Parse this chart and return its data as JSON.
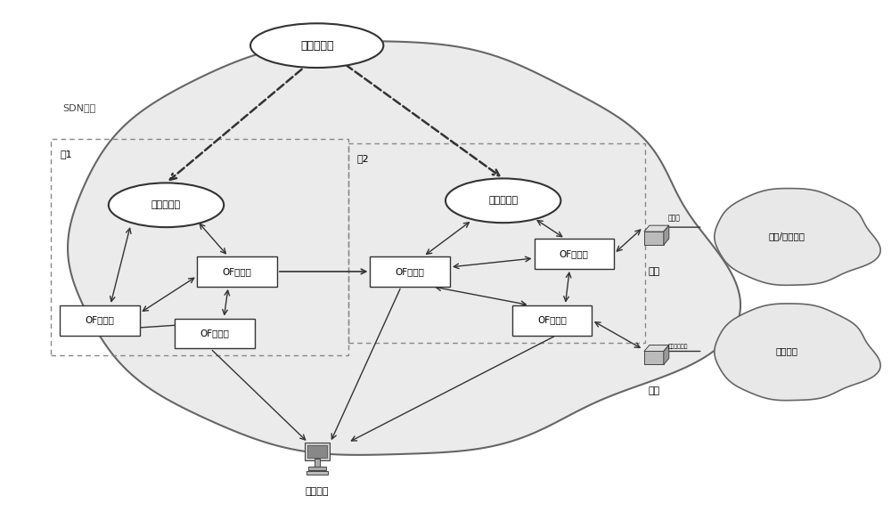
{
  "bg_color": "#f5f5f5",
  "white": "#ffffff",
  "gray_light": "#e8e8e8",
  "gray_mid": "#cccccc",
  "gray_dark": "#888888",
  "black": "#222222",
  "labels": {
    "global_ctrl": "全局控制器",
    "sdn_network": "SDN网络",
    "domain1": "域1",
    "domain2": "域2",
    "local_ctrl1": "局部控制器",
    "local_ctrl2": "局部控制器",
    "of_switch1": "OF交换机",
    "of_switch2": "OF交换机",
    "of_switch3": "OF交换机",
    "of_switch4": "OF交换机",
    "of_switch5": "OF交换机",
    "of_switch6": "OF交换机",
    "target_host": "目标主机",
    "gateway1": "网关",
    "gateway2": "网关",
    "attack_network": "僵尸/攻击网络",
    "normal_network": "正常网络",
    "attack_flow": "攻击流",
    "normal_flow": "正常流量传输"
  },
  "font_size": 8,
  "arrow_color": "#333333"
}
